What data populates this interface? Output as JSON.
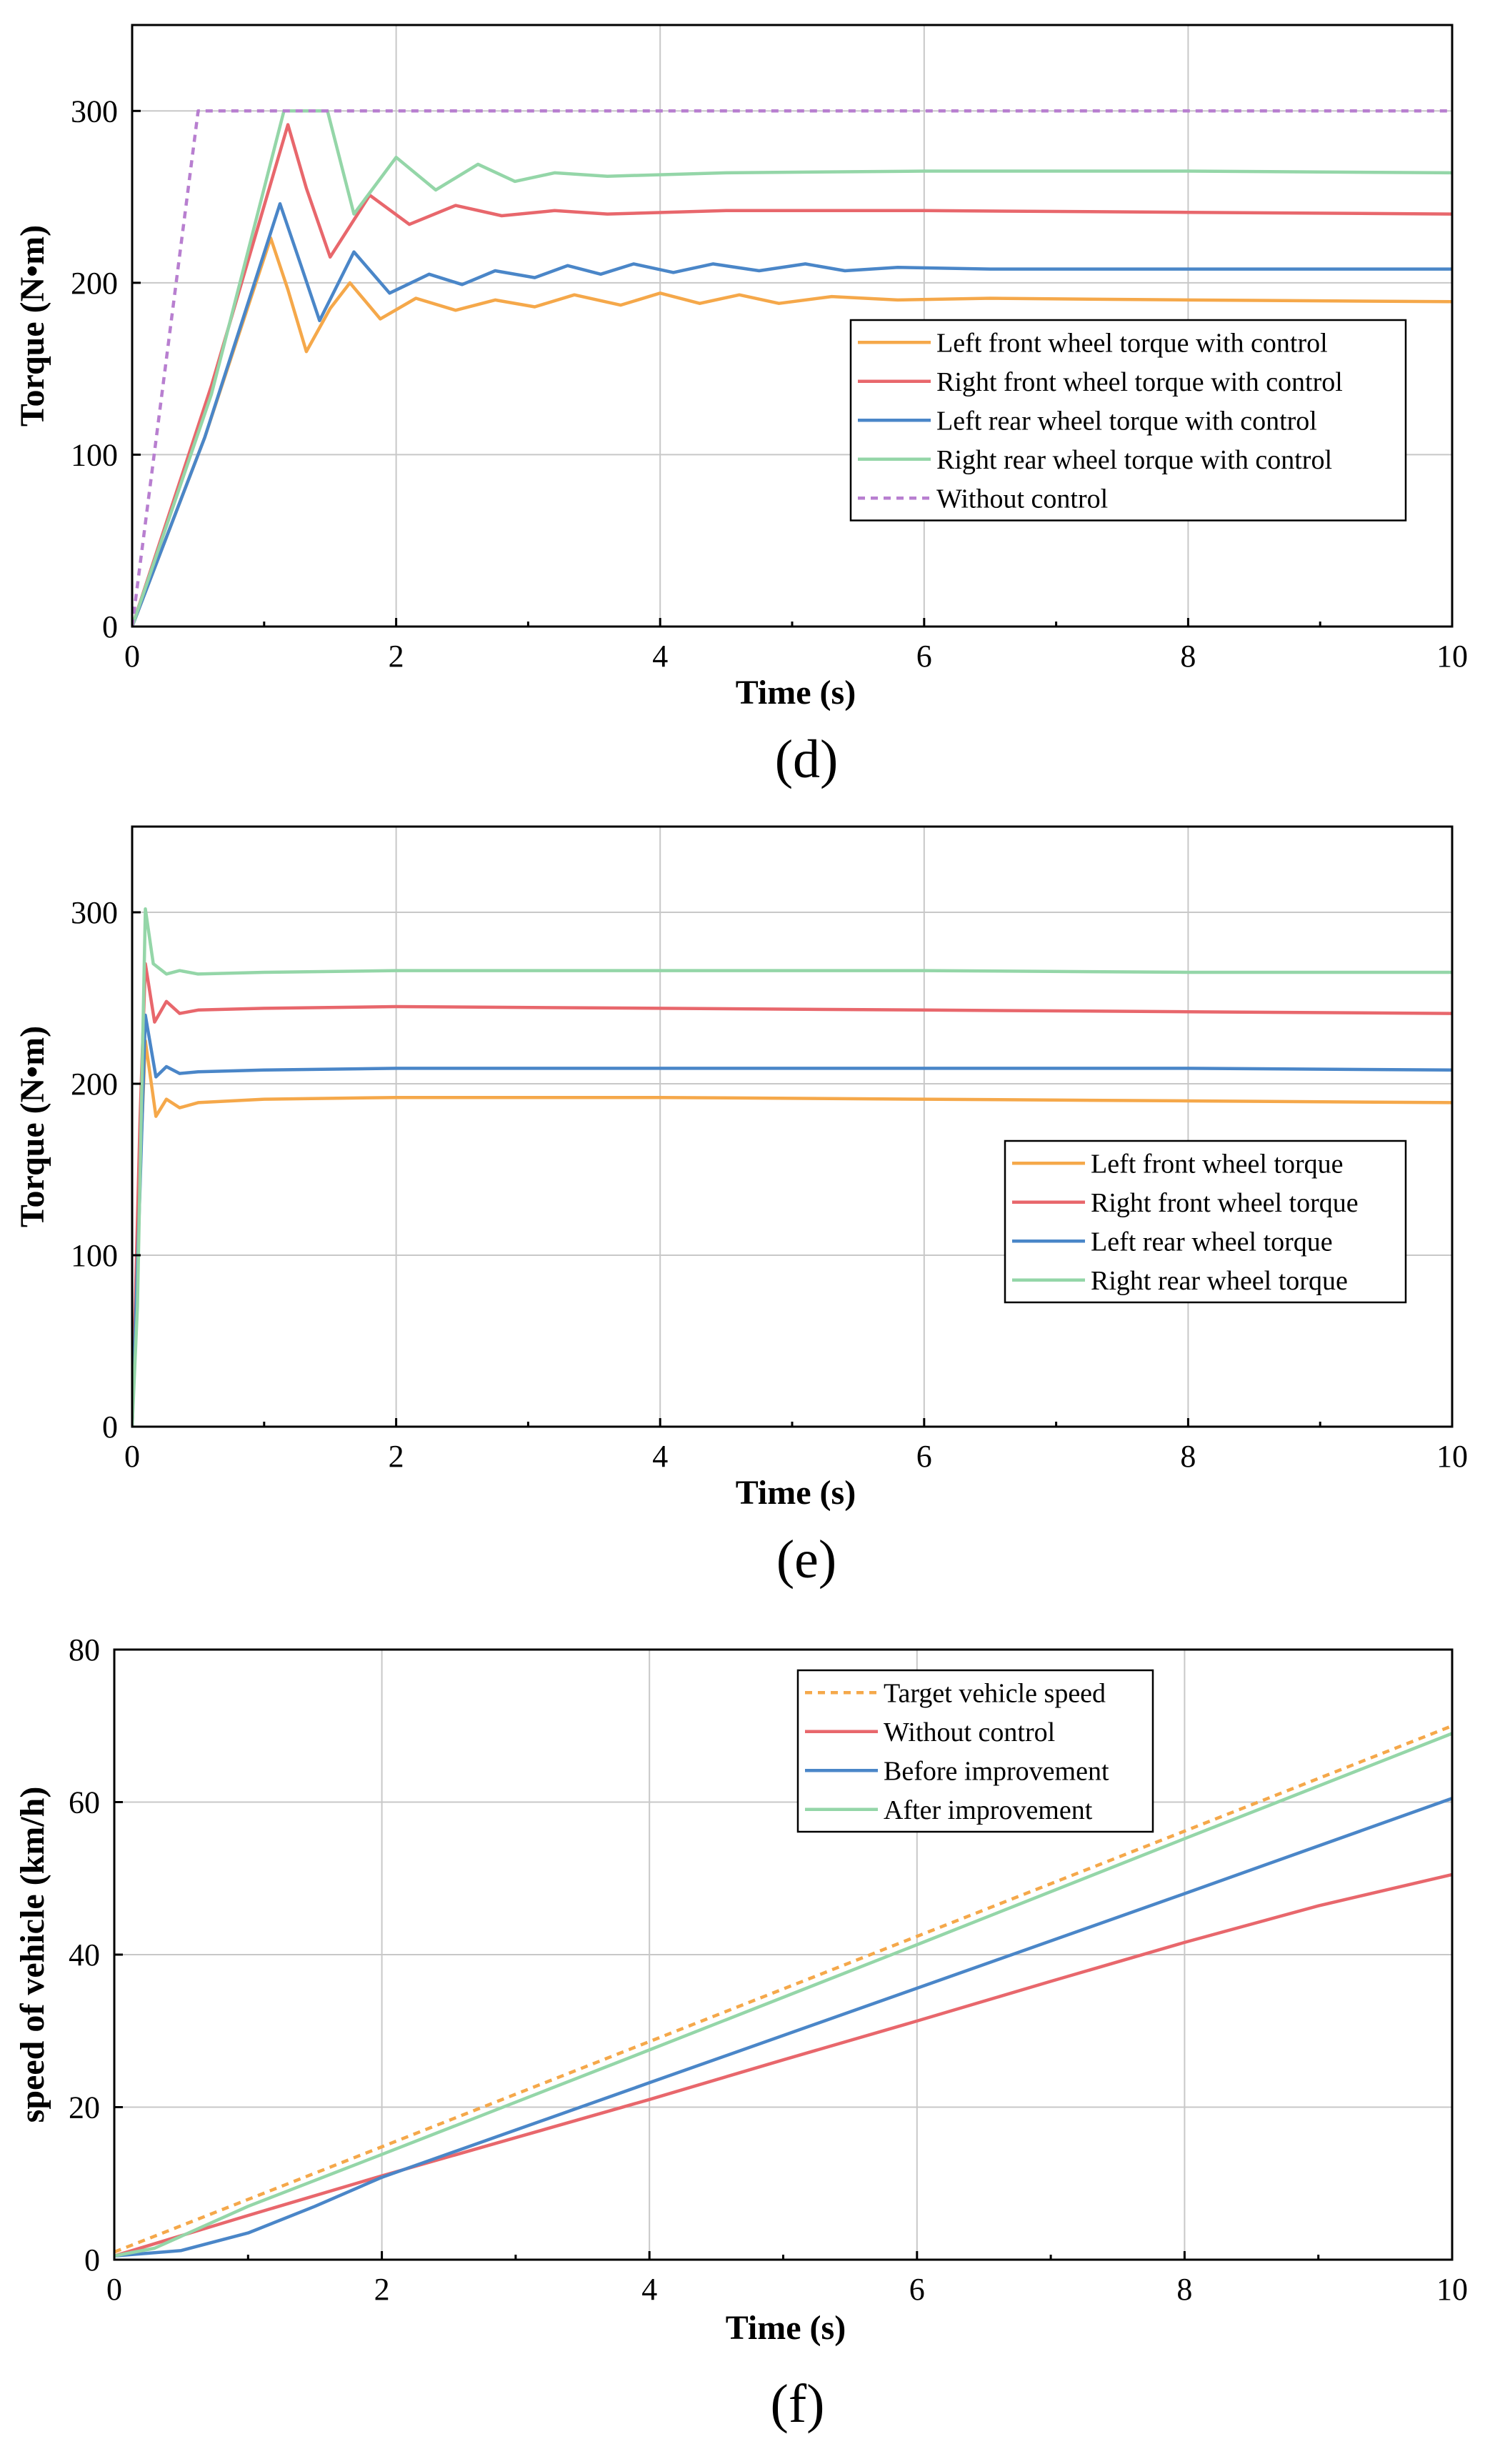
{
  "chart_data": [
    {
      "id": "d",
      "type": "line",
      "label": "(d)",
      "xlabel": "Time (s)",
      "ylabel": "Torque (N•m)",
      "xlim": [
        0,
        10
      ],
      "ylim": [
        0,
        350
      ],
      "xticks": [
        0,
        2,
        4,
        6,
        8,
        10
      ],
      "yticks": [
        0,
        100,
        200,
        300
      ],
      "grid": true,
      "legend_position": "center-right",
      "series": [
        {
          "name": "Left front wheel torque with control",
          "color": "#f5a84a",
          "dash": "solid",
          "x": [
            0,
            0.55,
            1.05,
            1.18,
            1.32,
            1.5,
            1.65,
            1.88,
            2.15,
            2.45,
            2.75,
            3.05,
            3.35,
            3.7,
            4.0,
            4.3,
            4.6,
            4.9,
            5.3,
            5.8,
            6.5,
            8,
            10
          ],
          "y": [
            0,
            110,
            226,
            196,
            160,
            185,
            200,
            179,
            191,
            184,
            190,
            186,
            193,
            187,
            194,
            188,
            193,
            188,
            192,
            190,
            191,
            190,
            189
          ]
        },
        {
          "name": "Right front wheel torque with control",
          "color": "#e8676c",
          "dash": "solid",
          "x": [
            0,
            0.6,
            1.18,
            1.32,
            1.5,
            1.8,
            2.1,
            2.45,
            2.8,
            3.2,
            3.6,
            4.5,
            6,
            8,
            10
          ],
          "y": [
            0,
            140,
            292,
            255,
            215,
            251,
            234,
            245,
            239,
            242,
            240,
            242,
            242,
            241,
            240
          ]
        },
        {
          "name": "Left rear wheel torque with control",
          "color": "#4a86c8",
          "dash": "solid",
          "x": [
            0,
            0.55,
            1.12,
            1.28,
            1.42,
            1.68,
            1.95,
            2.25,
            2.5,
            2.75,
            3.05,
            3.3,
            3.55,
            3.8,
            4.1,
            4.4,
            4.75,
            5.1,
            5.4,
            5.8,
            6.5,
            8,
            10
          ],
          "y": [
            0,
            110,
            246,
            210,
            178,
            218,
            194,
            205,
            199,
            207,
            203,
            210,
            205,
            211,
            206,
            211,
            207,
            211,
            207,
            209,
            208,
            208,
            208
          ]
        },
        {
          "name": "Right rear wheel torque with control",
          "color": "#94d6a8",
          "dash": "solid",
          "x": [
            0,
            0.6,
            1.15,
            1.48,
            1.68,
            2.0,
            2.3,
            2.62,
            2.9,
            3.2,
            3.6,
            4.5,
            6,
            8,
            10
          ],
          "y": [
            0,
            135,
            300,
            300,
            240,
            273,
            254,
            269,
            259,
            264,
            262,
            264,
            265,
            265,
            264
          ]
        },
        {
          "name": "Without control",
          "color": "#b87fd0",
          "dash": "dashed",
          "x": [
            0,
            0.5,
            10
          ],
          "y": [
            0,
            300,
            300
          ]
        }
      ]
    },
    {
      "id": "e",
      "type": "line",
      "label": "(e)",
      "xlabel": "Time (s)",
      "ylabel": "Torque (N•m)",
      "xlim": [
        0,
        10
      ],
      "ylim": [
        0,
        350
      ],
      "xticks": [
        0,
        2,
        4,
        6,
        8,
        10
      ],
      "yticks": [
        0,
        100,
        200,
        300
      ],
      "grid": true,
      "legend_position": "center-right",
      "series": [
        {
          "name": "Left front wheel torque",
          "color": "#f5a84a",
          "dash": "solid",
          "x": [
            0,
            0.06,
            0.1,
            0.18,
            0.26,
            0.36,
            0.5,
            1,
            2,
            4,
            6,
            8,
            10
          ],
          "y": [
            0,
            150,
            225,
            181,
            191,
            186,
            189,
            191,
            192,
            192,
            191,
            190,
            189
          ]
        },
        {
          "name": "Right front wheel torque",
          "color": "#e8676c",
          "dash": "solid",
          "x": [
            0,
            0.06,
            0.1,
            0.17,
            0.26,
            0.36,
            0.5,
            1,
            2,
            4,
            6,
            8,
            10
          ],
          "y": [
            0,
            180,
            270,
            236,
            248,
            241,
            243,
            244,
            245,
            244,
            243,
            242,
            241
          ]
        },
        {
          "name": "Left rear wheel torque",
          "color": "#4a86c8",
          "dash": "solid",
          "x": [
            0,
            0.06,
            0.1,
            0.18,
            0.26,
            0.36,
            0.5,
            1,
            2,
            4,
            6,
            8,
            10
          ],
          "y": [
            0,
            140,
            240,
            204,
            210,
            206,
            207,
            208,
            209,
            209,
            209,
            209,
            208
          ]
        },
        {
          "name": "Right rear wheel torque",
          "color": "#94d6a8",
          "dash": "solid",
          "x": [
            0,
            0.04,
            0.1,
            0.16,
            0.26,
            0.36,
            0.5,
            1,
            2,
            4,
            6,
            8,
            10
          ],
          "y": [
            0,
            70,
            302,
            270,
            264,
            266,
            264,
            265,
            266,
            266,
            266,
            265,
            265
          ]
        }
      ]
    },
    {
      "id": "f",
      "type": "line",
      "label": "(f)",
      "xlabel": "Time (s)",
      "ylabel": "speed of vehicle (km/h)",
      "xlim": [
        0,
        10
      ],
      "ylim": [
        0,
        80
      ],
      "xticks": [
        0,
        2,
        4,
        6,
        8,
        10
      ],
      "yticks": [
        0,
        20,
        40,
        60,
        80
      ],
      "grid": true,
      "legend_position": "top-right",
      "series": [
        {
          "name": "Target vehicle speed",
          "color": "#f5a84a",
          "dash": "dashed",
          "x": [
            0,
            10
          ],
          "y": [
            1,
            70
          ]
        },
        {
          "name": "Without control",
          "color": "#e8676c",
          "dash": "solid",
          "x": [
            0,
            1,
            2,
            3,
            4,
            5,
            6,
            7,
            8,
            9,
            10
          ],
          "y": [
            0.5,
            5.8,
            11,
            16,
            21,
            26.2,
            31.3,
            36.5,
            41.6,
            46.4,
            50.5
          ]
        },
        {
          "name": "Before improvement",
          "color": "#4a86c8",
          "dash": "solid",
          "x": [
            0,
            0.5,
            1,
            1.5,
            2,
            3,
            4,
            6,
            8,
            10
          ],
          "y": [
            0.5,
            1.2,
            3.5,
            7,
            10.8,
            17,
            23.2,
            35.6,
            48,
            60.5
          ]
        },
        {
          "name": "After improvement",
          "color": "#94d6a8",
          "dash": "solid",
          "x": [
            0,
            0.3,
            1,
            2,
            4,
            6,
            8,
            10
          ],
          "y": [
            0.5,
            1.5,
            7,
            13.8,
            27.5,
            41.3,
            55.2,
            69
          ]
        }
      ]
    }
  ]
}
